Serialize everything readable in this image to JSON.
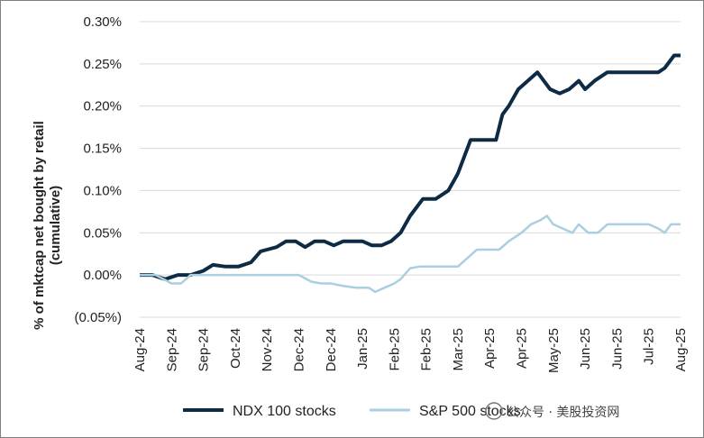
{
  "chart_data": {
    "type": "line",
    "ylabel_lines": [
      "% of mktcap net bought by retail",
      "(cumulative)"
    ],
    "ylim": [
      -0.0005,
      0.003
    ],
    "y_ticks": [
      {
        "value": 0.003,
        "label": "0.30%"
      },
      {
        "value": 0.0025,
        "label": "0.25%"
      },
      {
        "value": 0.002,
        "label": "0.20%"
      },
      {
        "value": 0.0015,
        "label": "0.15%"
      },
      {
        "value": 0.001,
        "label": "0.10%"
      },
      {
        "value": 0.0005,
        "label": "0.05%"
      },
      {
        "value": 0.0,
        "label": "0.00%"
      },
      {
        "value": -0.0005,
        "label": "(0.05%)"
      }
    ],
    "x_ticks": [
      "Aug-24",
      "Sep-24",
      "Sep-24",
      "Oct-24",
      "Nov-24",
      "Dec-24",
      "Dec-24",
      "Jan-25",
      "Feb-25",
      "Feb-25",
      "Mar-25",
      "Apr-25",
      "Apr-25",
      "May-25",
      "Jun-25",
      "Jun-25",
      "Jul-25",
      "Aug-25"
    ],
    "grid": "horizontal",
    "legend_position": "bottom",
    "series": [
      {
        "name": "NDX 100 stocks",
        "color": "#0d2b45",
        "points": [
          [
            0,
            0.0
          ],
          [
            0.4,
            0.0
          ],
          [
            0.8,
            -5e-05
          ],
          [
            1.2,
            0.0
          ],
          [
            1.6,
            0.0
          ],
          [
            2.0,
            5e-05
          ],
          [
            2.3,
            0.00012
          ],
          [
            2.7,
            0.0001
          ],
          [
            3.1,
            0.0001
          ],
          [
            3.5,
            0.00015
          ],
          [
            3.8,
            0.00028
          ],
          [
            4.0,
            0.0003
          ],
          [
            4.3,
            0.00033
          ],
          [
            4.6,
            0.0004
          ],
          [
            4.9,
            0.0004
          ],
          [
            5.2,
            0.00033
          ],
          [
            5.5,
            0.0004
          ],
          [
            5.8,
            0.0004
          ],
          [
            6.1,
            0.00035
          ],
          [
            6.4,
            0.0004
          ],
          [
            6.7,
            0.0004
          ],
          [
            7.0,
            0.0004
          ],
          [
            7.3,
            0.00035
          ],
          [
            7.6,
            0.00035
          ],
          [
            7.9,
            0.0004
          ],
          [
            8.2,
            0.0005
          ],
          [
            8.5,
            0.0007
          ],
          [
            8.9,
            0.0009
          ],
          [
            9.3,
            0.0009
          ],
          [
            9.7,
            0.001
          ],
          [
            10.0,
            0.0012
          ],
          [
            10.2,
            0.0014
          ],
          [
            10.4,
            0.0016
          ],
          [
            10.8,
            0.0016
          ],
          [
            11.2,
            0.0016
          ],
          [
            11.4,
            0.0019
          ],
          [
            11.6,
            0.002
          ],
          [
            11.9,
            0.0022
          ],
          [
            12.2,
            0.0023
          ],
          [
            12.5,
            0.0024
          ],
          [
            12.7,
            0.0023
          ],
          [
            12.9,
            0.0022
          ],
          [
            13.2,
            0.00215
          ],
          [
            13.5,
            0.0022
          ],
          [
            13.8,
            0.0023
          ],
          [
            14.0,
            0.0022
          ],
          [
            14.3,
            0.0023
          ],
          [
            14.7,
            0.0024
          ],
          [
            15.0,
            0.0024
          ],
          [
            15.5,
            0.0024
          ],
          [
            16.0,
            0.0024
          ],
          [
            16.3,
            0.0024
          ],
          [
            16.5,
            0.00245
          ],
          [
            16.8,
            0.0026
          ],
          [
            17.0,
            0.0026
          ]
        ]
      },
      {
        "name": "S&P 500 stocks",
        "color": "#a9cfe0",
        "points": [
          [
            0,
            0.0
          ],
          [
            0.5,
            0.0
          ],
          [
            1.0,
            -0.0001
          ],
          [
            1.3,
            -0.0001
          ],
          [
            1.6,
            0.0
          ],
          [
            2.0,
            0.0
          ],
          [
            3.0,
            0.0
          ],
          [
            4.0,
            0.0
          ],
          [
            5.0,
            0.0
          ],
          [
            5.4,
            -8e-05
          ],
          [
            5.7,
            -0.0001
          ],
          [
            6.0,
            -0.0001
          ],
          [
            6.4,
            -0.00013
          ],
          [
            6.8,
            -0.00015
          ],
          [
            7.2,
            -0.00015
          ],
          [
            7.4,
            -0.0002
          ],
          [
            7.7,
            -0.00015
          ],
          [
            8.0,
            -0.0001
          ],
          [
            8.2,
            -5e-05
          ],
          [
            8.5,
            8e-05
          ],
          [
            8.8,
            0.0001
          ],
          [
            9.2,
            0.0001
          ],
          [
            9.6,
            0.0001
          ],
          [
            10.0,
            0.0001
          ],
          [
            10.3,
            0.0002
          ],
          [
            10.6,
            0.0003
          ],
          [
            11.0,
            0.0003
          ],
          [
            11.3,
            0.0003
          ],
          [
            11.6,
            0.0004
          ],
          [
            12.0,
            0.0005
          ],
          [
            12.3,
            0.0006
          ],
          [
            12.6,
            0.00065
          ],
          [
            12.8,
            0.0007
          ],
          [
            13.0,
            0.0006
          ],
          [
            13.3,
            0.00055
          ],
          [
            13.6,
            0.0005
          ],
          [
            13.8,
            0.0006
          ],
          [
            14.1,
            0.0005
          ],
          [
            14.4,
            0.0005
          ],
          [
            14.7,
            0.0006
          ],
          [
            15.0,
            0.0006
          ],
          [
            15.5,
            0.0006
          ],
          [
            16.0,
            0.0006
          ],
          [
            16.3,
            0.00055
          ],
          [
            16.5,
            0.0005
          ],
          [
            16.7,
            0.0006
          ],
          [
            17.0,
            0.0006
          ]
        ]
      }
    ]
  },
  "watermark": "公众号 · 美股投资网"
}
